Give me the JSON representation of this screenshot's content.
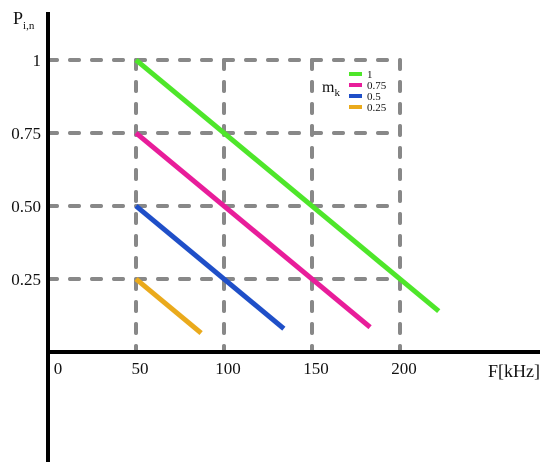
{
  "chart_data": {
    "type": "line",
    "xlabel": "F[kHz]",
    "ylabel": {
      "main": "P",
      "sub": "i,n"
    },
    "x_ticks": [
      {
        "value": 0,
        "label": "0"
      },
      {
        "value": 50,
        "label": "50"
      },
      {
        "value": 100,
        "label": "100"
      },
      {
        "value": 150,
        "label": "150"
      },
      {
        "value": 200,
        "label": "200"
      }
    ],
    "y_ticks": [
      {
        "value": 0.25,
        "label": "0.25"
      },
      {
        "value": 0.5,
        "label": "0.50"
      },
      {
        "value": 0.75,
        "label": "0.75"
      },
      {
        "value": 1,
        "label": "1"
      }
    ],
    "grid": true,
    "legend": {
      "title": {
        "main": "m",
        "sub": "k"
      },
      "position": "top-right"
    },
    "series": [
      {
        "name": "1",
        "color": "#4ee62a",
        "points": [
          [
            50,
            1.0
          ],
          [
            222,
            0.14
          ]
        ]
      },
      {
        "name": "0.75",
        "color": "#e81d9a",
        "points": [
          [
            50,
            0.75
          ],
          [
            183,
            0.085
          ]
        ]
      },
      {
        "name": "0.5",
        "color": "#1f4fc8",
        "points": [
          [
            50,
            0.5
          ],
          [
            134,
            0.08
          ]
        ]
      },
      {
        "name": "0.25",
        "color": "#eaaa1c",
        "points": [
          [
            50,
            0.25
          ],
          [
            87,
            0.065
          ]
        ]
      }
    ],
    "colors": {
      "axis": "#000000",
      "grid": "#888888"
    }
  }
}
